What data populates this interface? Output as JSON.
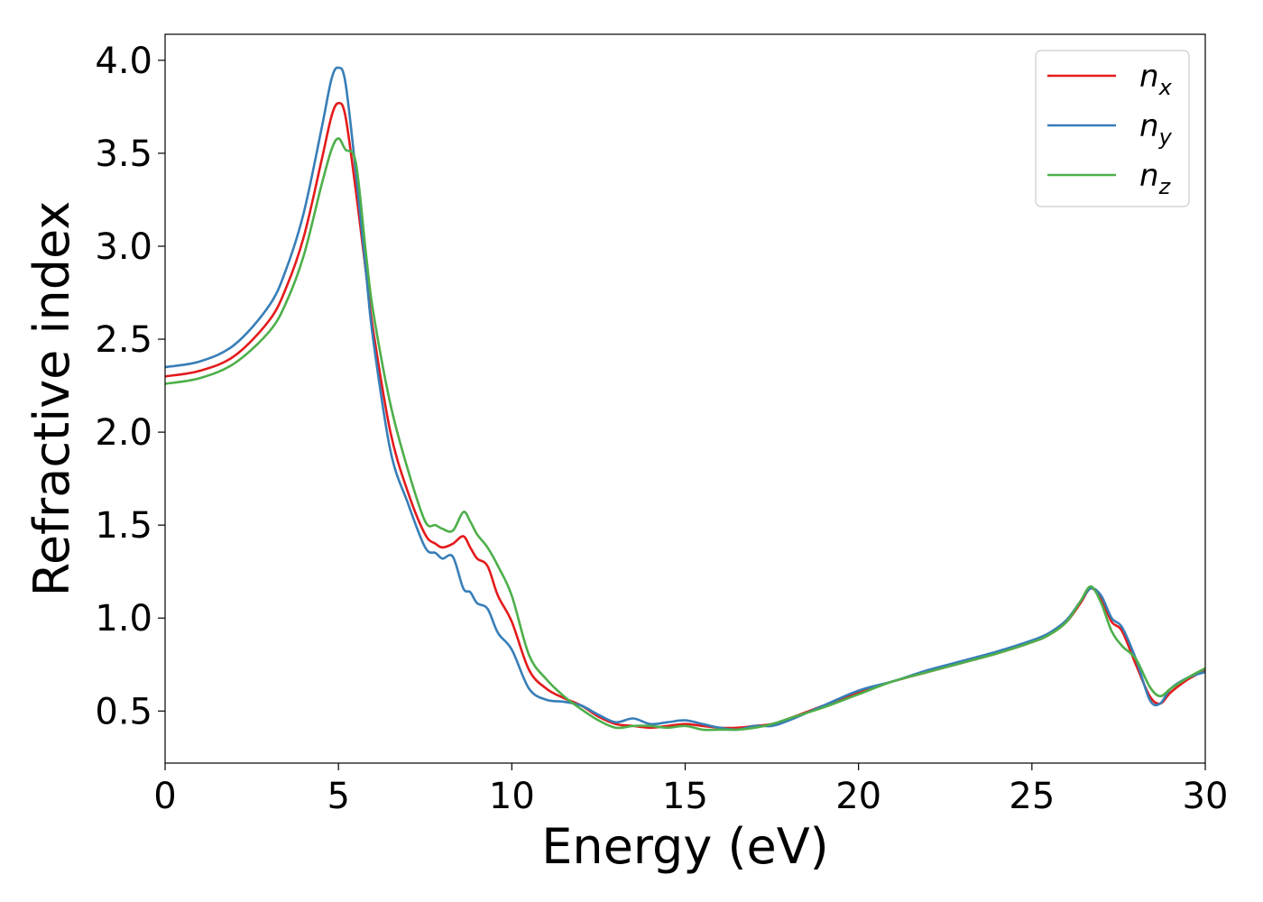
{
  "chart_data": {
    "type": "line",
    "xlabel": "Energy (eV)",
    "ylabel": "Refractive index",
    "xlim": [
      0,
      30
    ],
    "ylim": [
      0.22,
      4.14
    ],
    "xticks": [
      "0",
      "5",
      "10",
      "15",
      "20",
      "25",
      "30"
    ],
    "xtick_values": [
      0,
      5,
      10,
      15,
      20,
      25,
      30
    ],
    "yticks": [
      "0.5",
      "1.0",
      "1.5",
      "2.0",
      "2.5",
      "3.0",
      "3.5",
      "4.0"
    ],
    "ytick_values": [
      0.5,
      1.0,
      1.5,
      2.0,
      2.5,
      3.0,
      3.5,
      4.0
    ],
    "grid": false,
    "legend_position": "top-right",
    "series": [
      {
        "name": "n",
        "subscript": "x",
        "color": "#e41a1c",
        "x": [
          0,
          1,
          2,
          3,
          3.5,
          4,
          4.5,
          4.8,
          5.0,
          5.2,
          5.5,
          5.8,
          6.0,
          6.5,
          7.0,
          7.5,
          7.8,
          8.0,
          8.3,
          8.6,
          8.8,
          9.0,
          9.3,
          9.6,
          10.0,
          10.5,
          11.0,
          11.5,
          12.0,
          12.5,
          13.0,
          13.5,
          14.0,
          14.5,
          15.0,
          15.5,
          16.0,
          16.5,
          17.0,
          17.5,
          18.0,
          19.0,
          20.0,
          21.0,
          22.0,
          23.0,
          24.0,
          25.0,
          25.5,
          26.0,
          26.4,
          26.7,
          27.0,
          27.3,
          27.6,
          28.0,
          28.4,
          28.7,
          29.0,
          29.5,
          30.0
        ],
        "values": [
          2.3,
          2.33,
          2.41,
          2.6,
          2.78,
          3.05,
          3.45,
          3.7,
          3.77,
          3.7,
          3.3,
          2.85,
          2.55,
          2.0,
          1.68,
          1.45,
          1.4,
          1.38,
          1.4,
          1.44,
          1.38,
          1.32,
          1.28,
          1.12,
          0.98,
          0.72,
          0.62,
          0.57,
          0.53,
          0.47,
          0.43,
          0.42,
          0.41,
          0.42,
          0.43,
          0.42,
          0.41,
          0.41,
          0.42,
          0.43,
          0.46,
          0.53,
          0.6,
          0.66,
          0.71,
          0.76,
          0.81,
          0.87,
          0.91,
          0.98,
          1.08,
          1.16,
          1.1,
          0.98,
          0.93,
          0.75,
          0.58,
          0.54,
          0.6,
          0.67,
          0.72
        ]
      },
      {
        "name": "n",
        "subscript": "y",
        "color": "#377eb8",
        "x": [
          0,
          1,
          2,
          3,
          3.5,
          4,
          4.5,
          4.8,
          5.0,
          5.2,
          5.5,
          5.8,
          6.0,
          6.5,
          7.0,
          7.5,
          7.8,
          8.0,
          8.3,
          8.6,
          8.8,
          9.0,
          9.3,
          9.6,
          10.0,
          10.5,
          11.0,
          11.5,
          12.0,
          12.5,
          13.0,
          13.5,
          14.0,
          14.5,
          15.0,
          15.5,
          16.0,
          16.5,
          17.0,
          17.5,
          18.0,
          19.0,
          20.0,
          21.0,
          22.0,
          23.0,
          24.0,
          25.0,
          25.5,
          26.0,
          26.4,
          26.7,
          27.0,
          27.3,
          27.6,
          28.0,
          28.4,
          28.7,
          29.0,
          29.5,
          30.0
        ],
        "values": [
          2.35,
          2.38,
          2.47,
          2.68,
          2.88,
          3.18,
          3.62,
          3.9,
          3.96,
          3.88,
          3.4,
          2.85,
          2.5,
          1.9,
          1.62,
          1.38,
          1.35,
          1.32,
          1.33,
          1.16,
          1.14,
          1.08,
          1.05,
          0.92,
          0.83,
          0.62,
          0.56,
          0.55,
          0.53,
          0.48,
          0.44,
          0.46,
          0.43,
          0.44,
          0.45,
          0.43,
          0.41,
          0.4,
          0.42,
          0.42,
          0.45,
          0.53,
          0.61,
          0.66,
          0.72,
          0.77,
          0.82,
          0.88,
          0.92,
          0.99,
          1.09,
          1.16,
          1.12,
          1.0,
          0.95,
          0.78,
          0.56,
          0.54,
          0.62,
          0.68,
          0.71
        ]
      },
      {
        "name": "n",
        "subscript": "z",
        "color": "#4daf4a",
        "x": [
          0,
          1,
          2,
          3,
          3.5,
          4,
          4.5,
          4.8,
          5.0,
          5.2,
          5.5,
          5.8,
          6.0,
          6.5,
          7.0,
          7.5,
          7.8,
          8.0,
          8.3,
          8.6,
          8.8,
          9.0,
          9.3,
          9.6,
          10.0,
          10.5,
          11.0,
          11.5,
          12.0,
          12.5,
          13.0,
          13.5,
          14.0,
          14.5,
          15.0,
          15.5,
          16.0,
          16.5,
          17.0,
          17.5,
          18.0,
          19.0,
          20.0,
          21.0,
          22.0,
          23.0,
          24.0,
          25.0,
          25.5,
          26.0,
          26.4,
          26.7,
          27.0,
          27.3,
          27.6,
          28.0,
          28.4,
          28.7,
          29.0,
          29.5,
          30.0
        ],
        "values": [
          2.26,
          2.29,
          2.37,
          2.54,
          2.7,
          2.95,
          3.32,
          3.52,
          3.58,
          3.52,
          3.45,
          2.95,
          2.65,
          2.15,
          1.8,
          1.52,
          1.5,
          1.48,
          1.47,
          1.57,
          1.52,
          1.45,
          1.38,
          1.28,
          1.12,
          0.8,
          0.67,
          0.58,
          0.51,
          0.45,
          0.41,
          0.42,
          0.42,
          0.41,
          0.42,
          0.4,
          0.4,
          0.4,
          0.41,
          0.43,
          0.46,
          0.52,
          0.59,
          0.66,
          0.71,
          0.76,
          0.81,
          0.87,
          0.91,
          0.98,
          1.09,
          1.17,
          1.08,
          0.93,
          0.85,
          0.78,
          0.63,
          0.58,
          0.62,
          0.68,
          0.73
        ]
      }
    ]
  }
}
